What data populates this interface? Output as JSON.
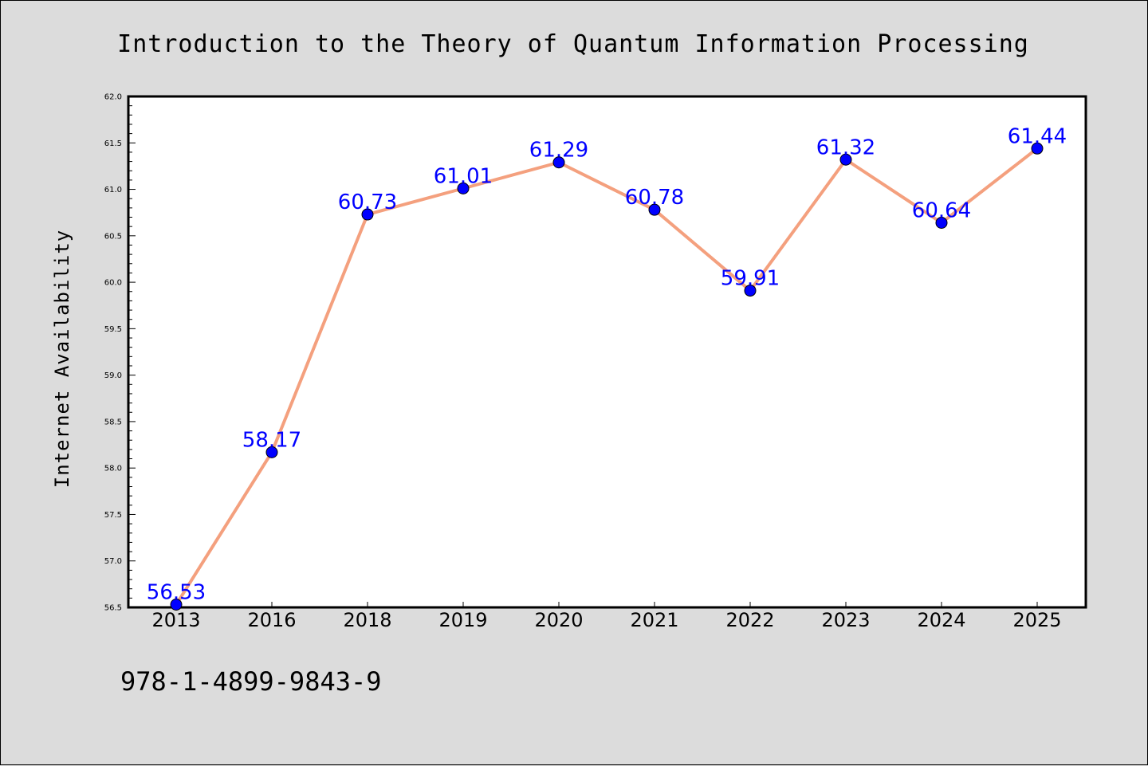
{
  "chart_data": {
    "type": "line",
    "title": "Introduction to the Theory of Quantum Information Processing",
    "xlabel": "",
    "ylabel": "Internet Availability",
    "categories": [
      "2013",
      "2016",
      "2018",
      "2019",
      "2020",
      "2021",
      "2022",
      "2023",
      "2024",
      "2025"
    ],
    "values": [
      56.53,
      58.17,
      60.73,
      61.01,
      61.29,
      60.78,
      59.91,
      61.32,
      60.64,
      61.44
    ],
    "data_labels": [
      "56.53",
      "58.17",
      "60.73",
      "61.01",
      "61.29",
      "60.78",
      "59.91",
      "61.32",
      "60.64",
      "61.44"
    ],
    "ylim": [
      56.5,
      62.0
    ],
    "yticks": [
      "56.5",
      "57.0",
      "57.5",
      "58.0",
      "58.5",
      "59.0",
      "59.5",
      "60.0",
      "60.5",
      "61.0",
      "61.5",
      "62.0"
    ],
    "grid": false,
    "legend": "none",
    "line_color": "#f4a07e",
    "marker_color": "#0000ff",
    "label_color": "#0000ff",
    "background_color": "#dcdcdc",
    "plot_background_color": "#ffffff"
  },
  "footer": {
    "isbn": "978-1-4899-9843-9"
  }
}
